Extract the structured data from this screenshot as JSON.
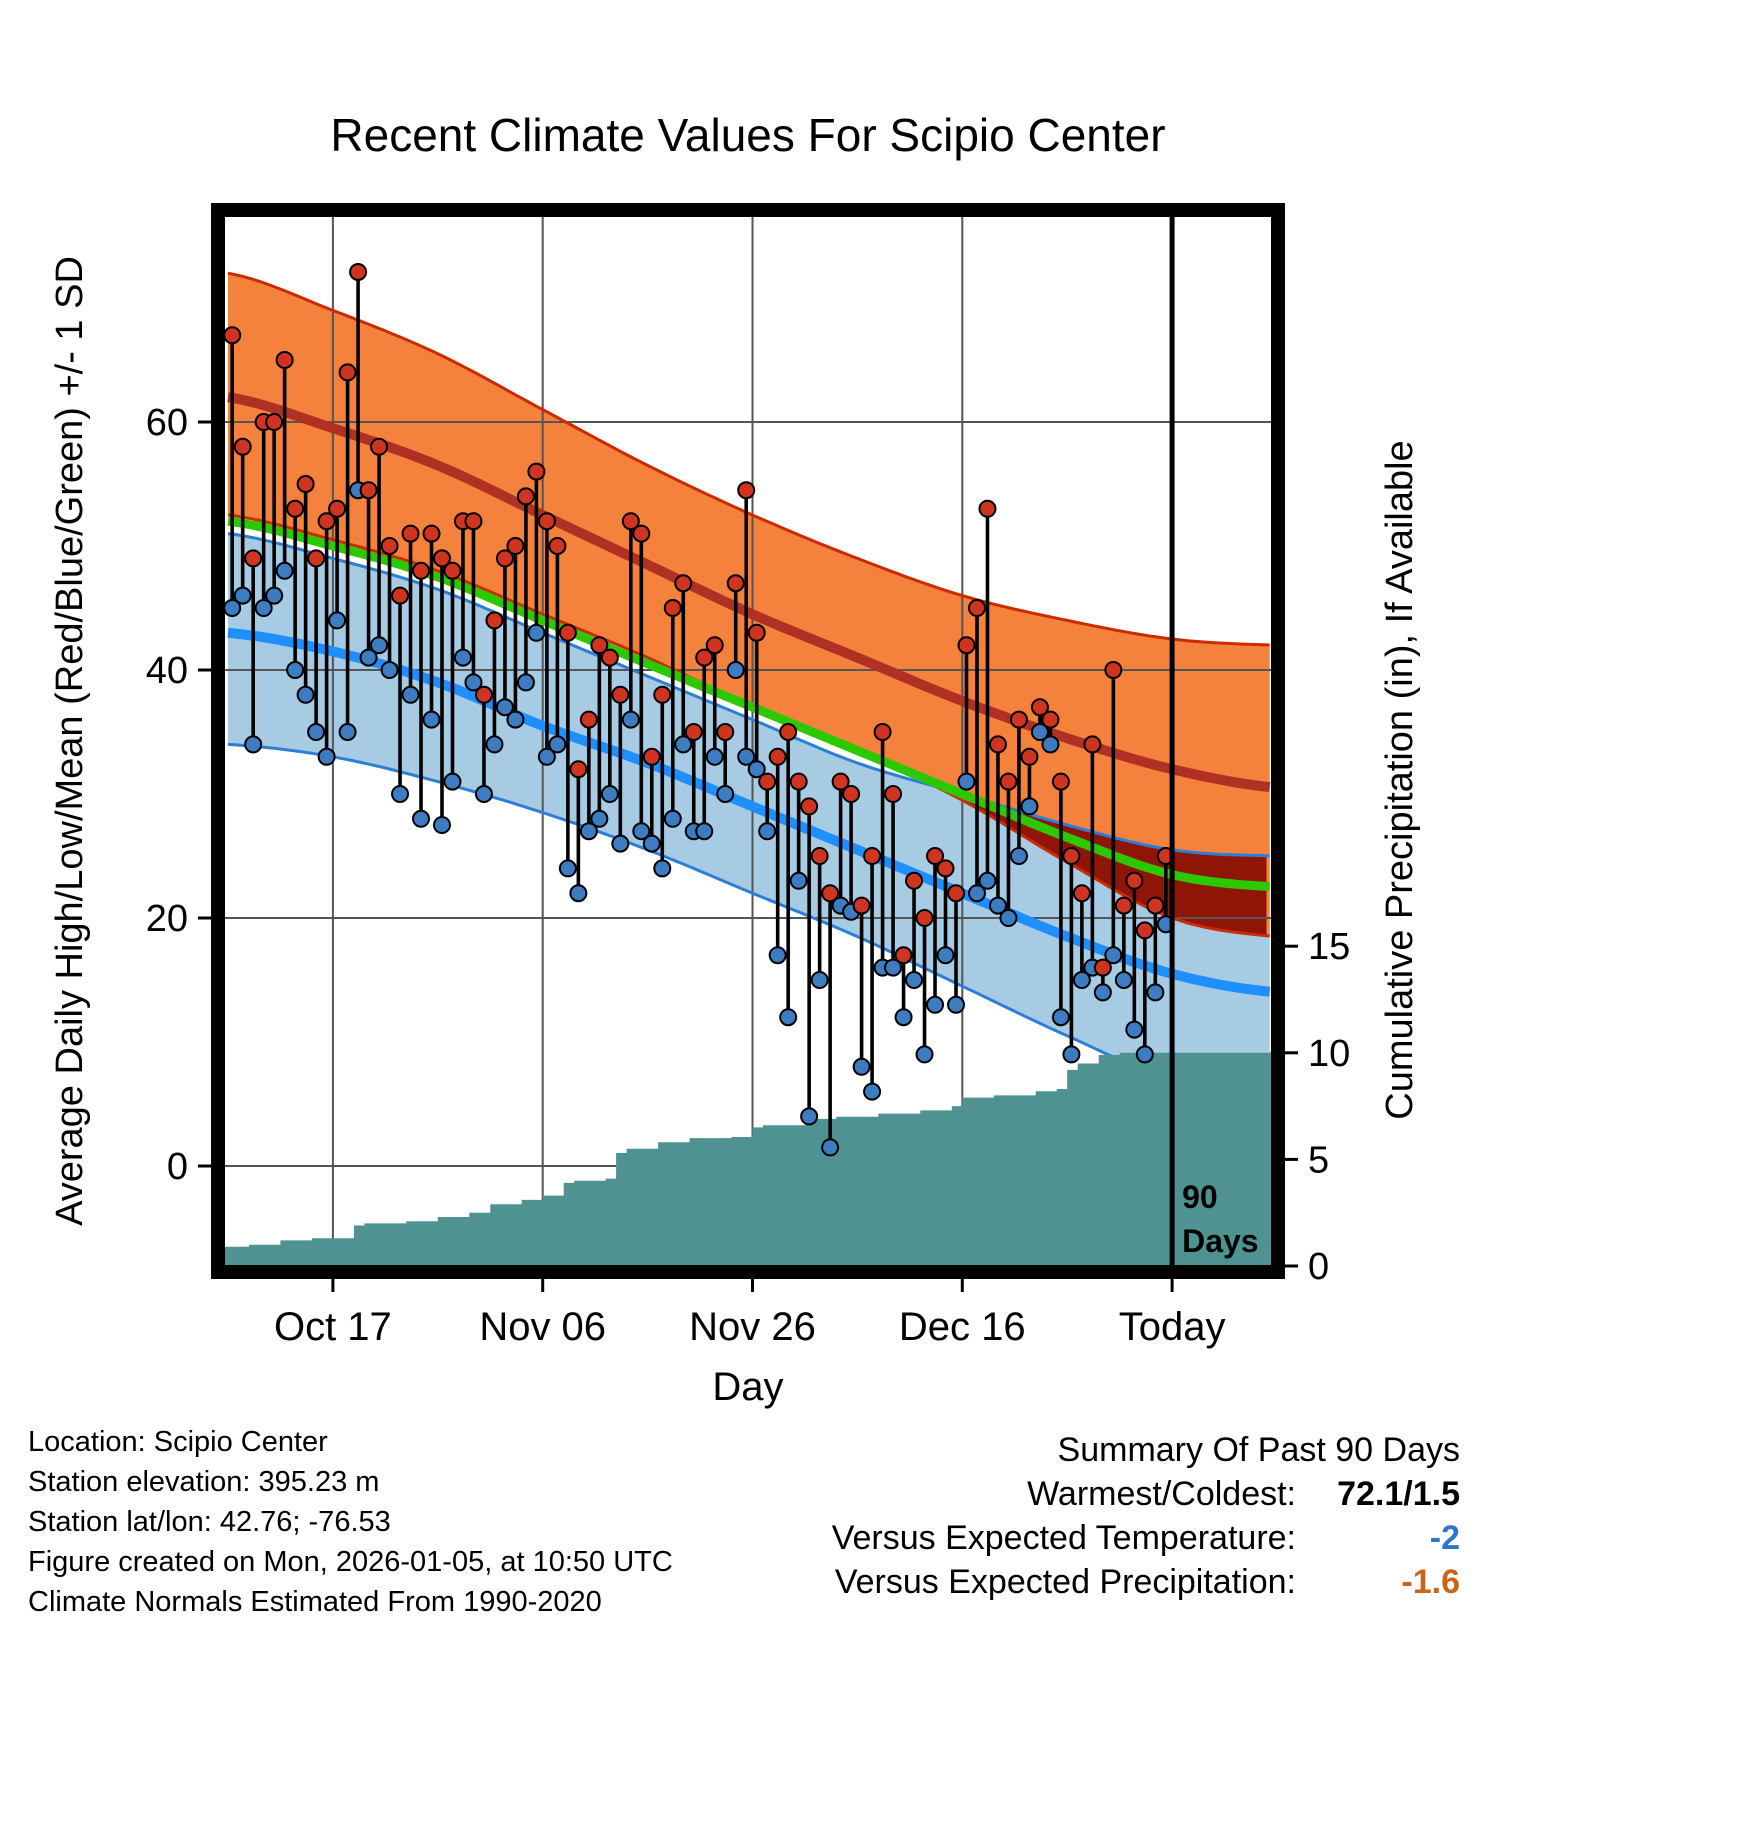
{
  "title": "Recent Climate Values For Scipio Center",
  "axes": {
    "left_label": "Average Daily High/Low/Mean (Red/Blue/Green) +/- 1 SD",
    "right_label": "Cumulative Precipitation (in), If Available",
    "x_label": "Day"
  },
  "chart_data": {
    "type": "line",
    "title": "Recent Climate Values For Scipio Center",
    "xlabel": "Day",
    "ylabel_left": "Average Daily High/Low/Mean (Red/Blue/Green) +/- 1 SD",
    "ylabel_right": "Cumulative Precipitation (in), If Available",
    "temp_axis": {
      "ticks": [
        0,
        20,
        40,
        60
      ],
      "range": [
        -8.5,
        77
      ]
    },
    "precip_axis": {
      "ticks": [
        0,
        5,
        10,
        15
      ],
      "range": [
        0,
        24
      ]
    },
    "x_tick_days": [
      {
        "day": 10,
        "label": "Oct 17"
      },
      {
        "day": 30,
        "label": "Nov 06"
      },
      {
        "day": 50,
        "label": "Nov 26"
      },
      {
        "day": 70,
        "label": "Dec 16"
      },
      {
        "day": 90,
        "label": "Today"
      }
    ],
    "normals_control_days": [
      0,
      10,
      20,
      30,
      40,
      50,
      60,
      70,
      80,
      90,
      100
    ],
    "normals": {
      "high_upper": [
        72,
        69,
        65.5,
        61,
        56.5,
        52.5,
        49,
        46,
        44,
        42.5,
        42
      ],
      "high_mean": [
        62,
        59.5,
        56.5,
        52.5,
        48.5,
        44.5,
        41,
        37.5,
        34.5,
        32,
        30.5
      ],
      "high_lower": [
        52.5,
        50.5,
        48,
        44.5,
        41,
        37,
        33.5,
        29.5,
        24.5,
        20,
        18.5
      ],
      "mean": [
        52,
        50,
        47.5,
        44,
        40.5,
        37,
        33.5,
        30,
        26.5,
        23.5,
        22.5
      ],
      "low_upper": [
        51,
        49,
        46.5,
        43,
        39.5,
        36,
        32.5,
        30,
        27.5,
        25.5,
        25
      ],
      "low_mean": [
        43,
        41.5,
        39,
        35.5,
        32.5,
        29,
        25.5,
        22,
        18.5,
        15.5,
        14
      ],
      "low_lower": [
        34,
        33,
        31,
        28.5,
        25.5,
        22,
        18.5,
        14.5,
        10.5,
        7,
        6
      ]
    },
    "daily": {
      "highs": [
        67,
        58,
        49,
        60,
        60,
        65,
        53,
        55,
        49,
        52,
        53,
        64,
        72.1,
        54.5,
        58,
        50,
        46,
        51,
        48,
        51,
        49,
        48,
        52,
        52,
        38,
        44,
        49,
        50,
        54,
        56,
        52,
        50,
        43,
        32,
        36,
        42,
        41,
        38,
        52,
        51,
        33,
        38,
        45,
        47,
        35,
        41,
        42,
        35,
        47,
        54.5,
        43,
        31,
        33,
        35,
        31,
        29,
        25,
        22,
        31,
        30,
        21,
        25,
        35,
        30,
        17,
        23,
        20,
        25,
        24,
        22,
        42,
        45,
        53,
        34,
        31,
        36,
        33,
        37,
        36,
        31,
        25,
        22,
        34,
        16,
        40,
        21,
        23,
        19,
        21,
        25
      ],
      "lows": [
        45,
        46,
        34,
        45,
        46,
        48,
        40,
        38,
        35,
        33,
        44,
        35,
        54.5,
        41,
        42,
        40,
        30,
        38,
        28,
        36,
        27.5,
        31,
        41,
        39,
        30,
        34,
        37,
        36,
        39,
        43,
        33,
        34,
        24,
        22,
        27,
        28,
        30,
        26,
        36,
        27,
        26,
        24,
        28,
        34,
        27,
        27,
        33,
        30,
        40,
        33,
        32,
        27,
        17,
        12,
        23,
        4,
        15,
        1.5,
        21,
        20.5,
        8,
        6,
        16,
        16,
        12,
        15,
        9,
        13,
        17,
        13,
        31,
        22,
        23,
        21,
        20,
        25,
        29,
        35,
        34,
        12,
        9,
        15,
        16,
        14,
        17,
        15,
        11,
        9,
        14,
        19.5
      ]
    },
    "precip_cumulative": [
      [
        0,
        0.9
      ],
      [
        2,
        1.0
      ],
      [
        5,
        1.2
      ],
      [
        8,
        1.3
      ],
      [
        12,
        1.9
      ],
      [
        13,
        2.0
      ],
      [
        17,
        2.1
      ],
      [
        20,
        2.3
      ],
      [
        23,
        2.5
      ],
      [
        25,
        2.9
      ],
      [
        28,
        3.1
      ],
      [
        30,
        3.3
      ],
      [
        32,
        3.9
      ],
      [
        33,
        4.0
      ],
      [
        36,
        4.1
      ],
      [
        37,
        5.3
      ],
      [
        38,
        5.5
      ],
      [
        41,
        5.8
      ],
      [
        44,
        6.0
      ],
      [
        48,
        6.05
      ],
      [
        50,
        6.5
      ],
      [
        51,
        6.6
      ],
      [
        55,
        6.9
      ],
      [
        58,
        7.0
      ],
      [
        62,
        7.15
      ],
      [
        66,
        7.3
      ],
      [
        69,
        7.5
      ],
      [
        70,
        7.9
      ],
      [
        73,
        8.0
      ],
      [
        77,
        8.2
      ],
      [
        79,
        8.3
      ],
      [
        80,
        9.2
      ],
      [
        81,
        9.5
      ],
      [
        83,
        9.9
      ],
      [
        85,
        10.0
      ],
      [
        99.3,
        10.05
      ]
    ],
    "marker_line_day": 90,
    "annotation_90_days": [
      "90",
      "Days"
    ],
    "colors": {
      "orange_band": "#F4813C",
      "high_edge": "#CC2A00",
      "high_mean_line": "#B03024",
      "blue_band": "#A8CBE4",
      "low_edge": "#2B7FD4",
      "low_mean_line": "#1E8FFF",
      "mean_line": "#2DC900",
      "overlap_band": "#8F1507",
      "precip_fill": "#4E9292",
      "high_dot": "#CF3420",
      "low_dot": "#3E7CC1",
      "bar": "#000000",
      "grid": "#555555"
    }
  },
  "footer": {
    "lines": [
      "Location: Scipio Center",
      "Station elevation: 395.23 m",
      "Station lat/lon: 42.76; -76.53",
      "Figure created on Mon, 2026-01-05, at 10:50 UTC",
      "Climate Normals Estimated From 1990-2020"
    ]
  },
  "summary": {
    "title": "Summary Of Past 90 Days",
    "rows": [
      {
        "label": "Warmest/Coldest:",
        "value": "72.1/1.5",
        "color": "#000000"
      },
      {
        "label": "Versus Expected Temperature:",
        "value": "-2",
        "color": "#2E75CC"
      },
      {
        "label": "Versus Expected Precipitation:",
        "value": "-1.6",
        "color": "#C8651B"
      }
    ]
  }
}
